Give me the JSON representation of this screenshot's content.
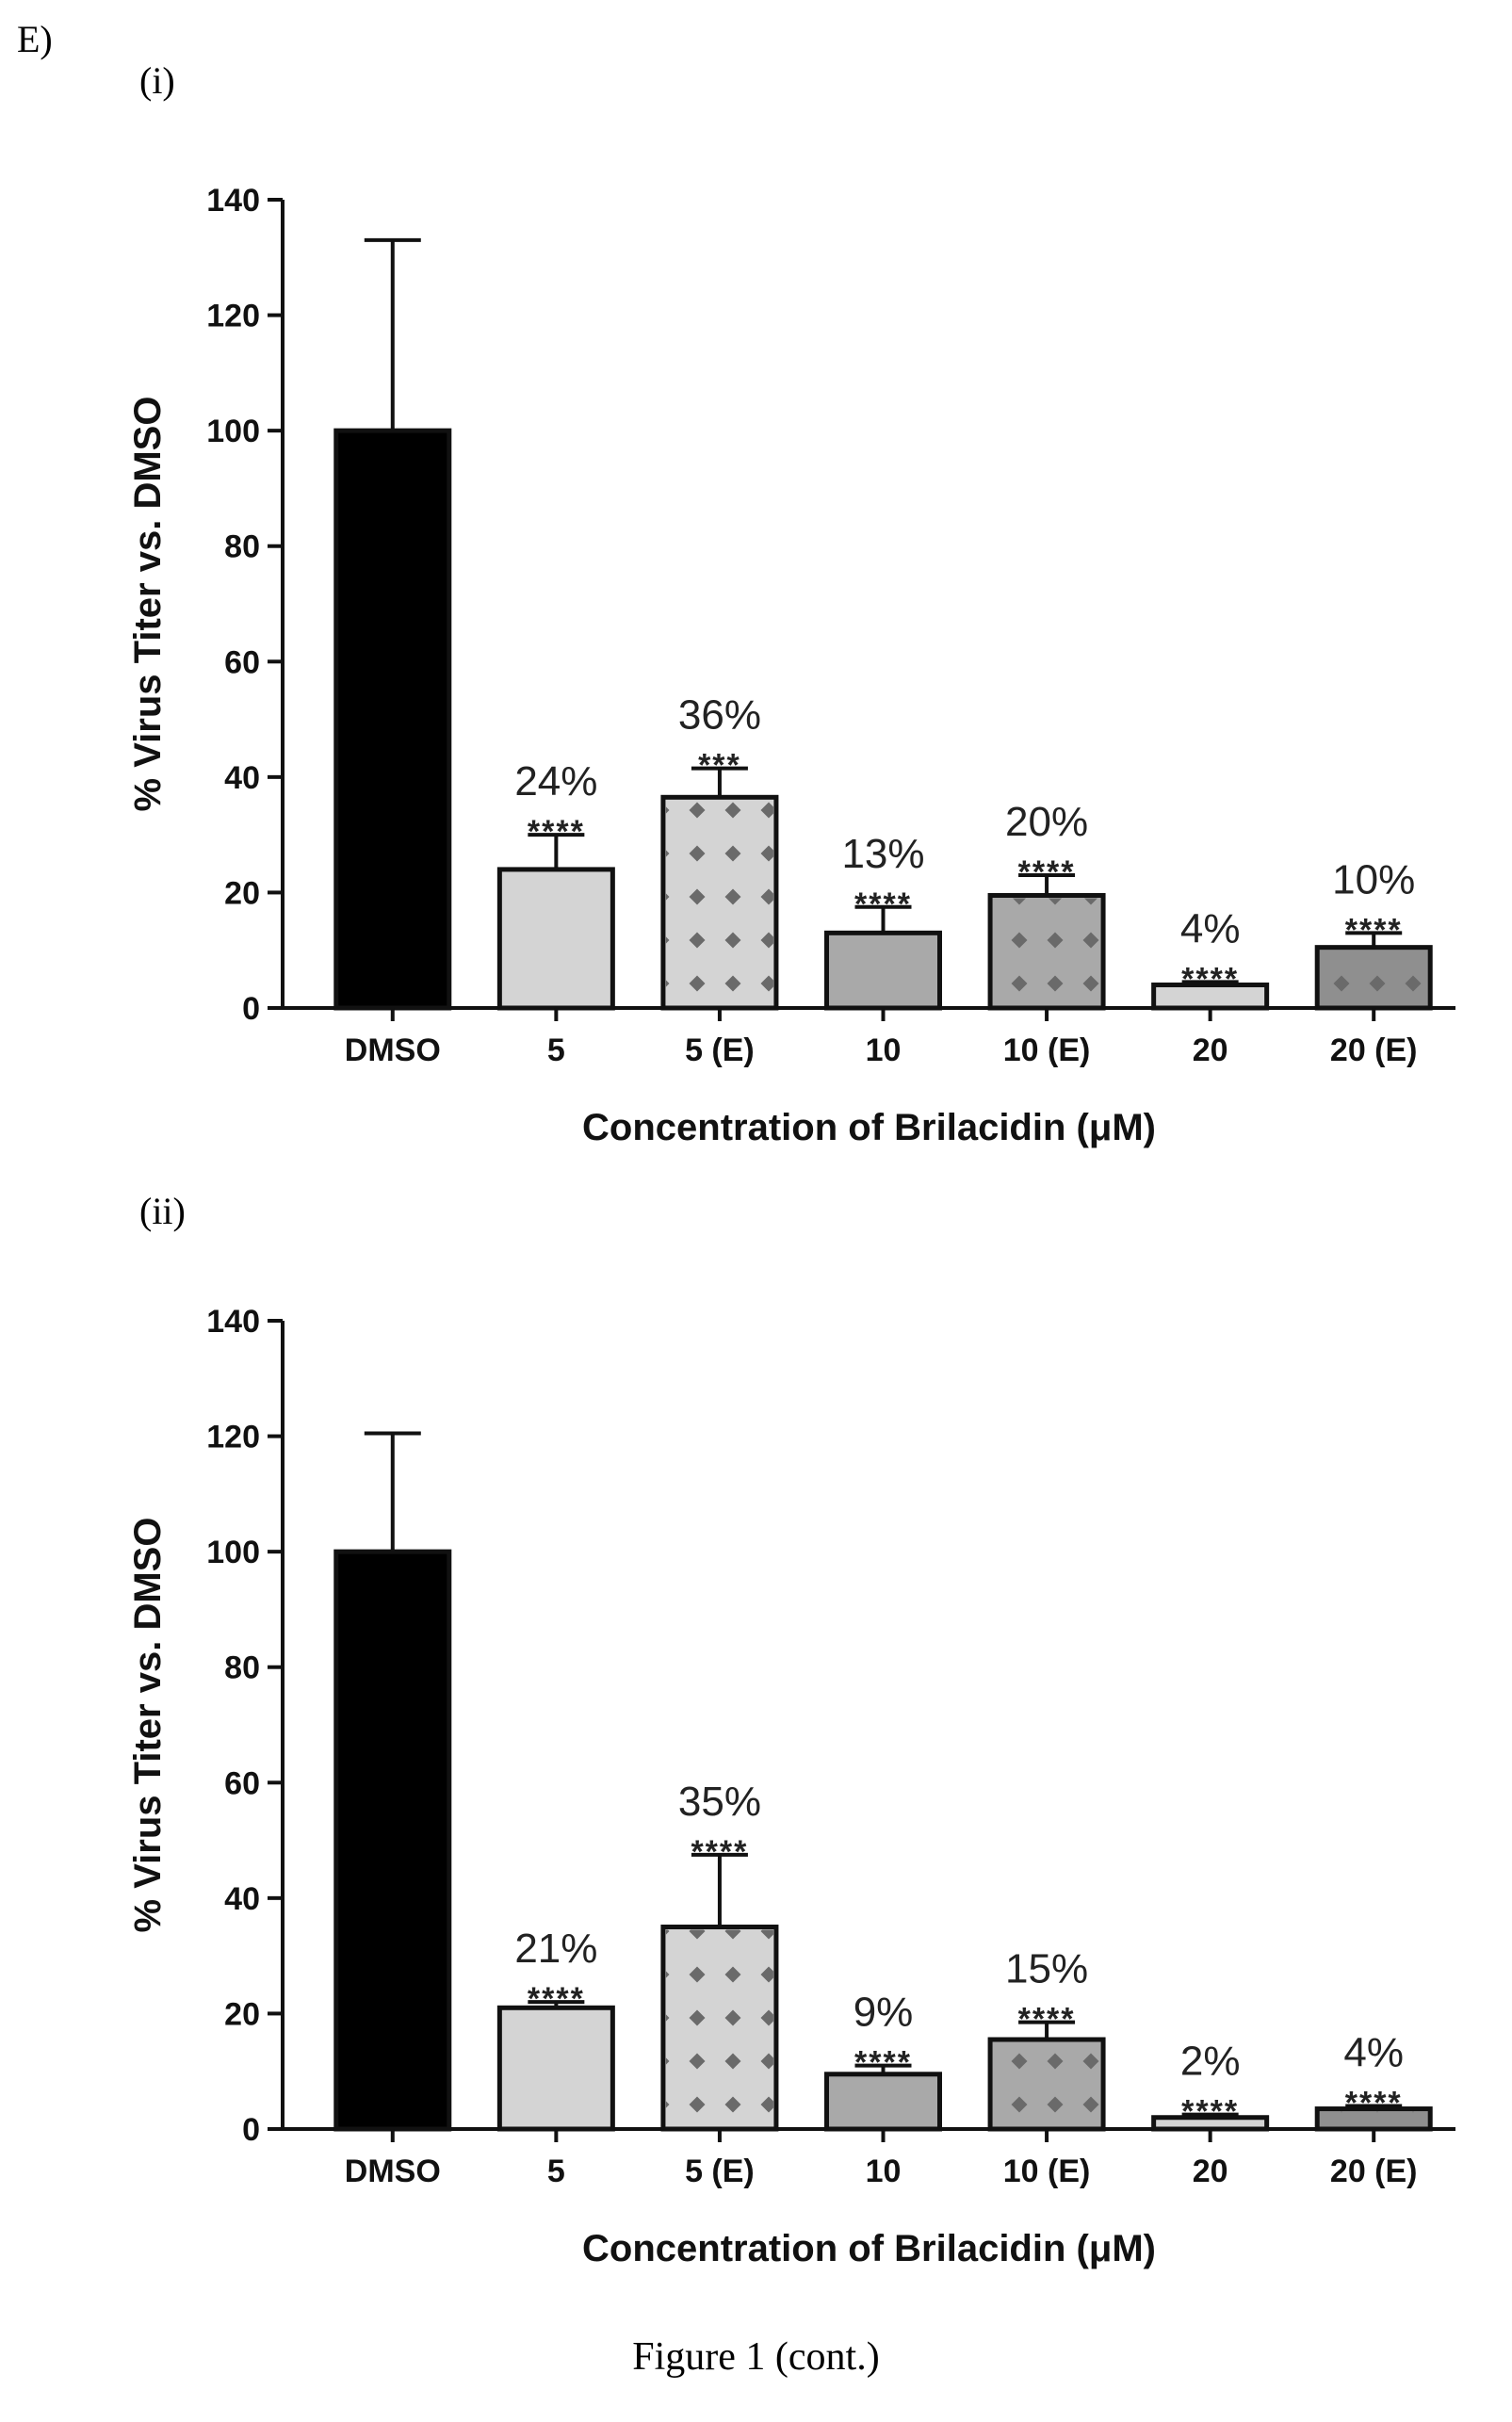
{
  "panel_label": "E)",
  "figure_caption": "Figure 1 (cont.)",
  "colors": {
    "dmso_bar": "#000000",
    "light_bar": "#d4d4d4",
    "mid_bar": "#a9a9a9",
    "dark_bar": "#8f8f8f",
    "pattern_dot": "#6a6a6a"
  },
  "chart_data": [
    {
      "subpanel": "(i)",
      "type": "bar",
      "xlabel": "Concentration of Brilacidin (μM)",
      "ylabel": "% Virus Titer vs. DMSO",
      "ylim": [
        0,
        140
      ],
      "yticks": [
        "0",
        "20",
        "40",
        "60",
        "80",
        "100",
        "120",
        "140"
      ],
      "categories": [
        "DMSO",
        "5",
        "5 (E)",
        "10",
        "10 (E)",
        "20",
        "20 (E)"
      ],
      "values": [
        100,
        24,
        36.5,
        13,
        19.5,
        4,
        10.5
      ],
      "errors": [
        33,
        6,
        5,
        4.5,
        3.5,
        0.5,
        2.5
      ],
      "percent_labels": [
        "",
        "24%",
        "36%",
        "13%",
        "20%",
        "4%",
        "10%"
      ],
      "significance": [
        "",
        "****",
        "***",
        "****",
        "****",
        "****",
        "****"
      ],
      "fills": [
        "dmso_bar",
        "light_bar",
        "light_bar",
        "mid_bar",
        "mid_bar",
        "light_bar",
        "dark_bar"
      ],
      "patterned": [
        false,
        false,
        true,
        false,
        true,
        false,
        true
      ]
    },
    {
      "subpanel": "(ii)",
      "type": "bar",
      "xlabel": "Concentration of Brilacidin (μM)",
      "ylabel": "% Virus Titer vs. DMSO",
      "ylim": [
        0,
        140
      ],
      "yticks": [
        "0",
        "20",
        "40",
        "60",
        "80",
        "100",
        "120",
        "140"
      ],
      "categories": [
        "DMSO",
        "5",
        "5 (E)",
        "10",
        "10 (E)",
        "20",
        "20 (E)"
      ],
      "values": [
        100,
        21,
        35,
        9.5,
        15.5,
        2,
        3.5
      ],
      "errors": [
        20.5,
        1,
        12.5,
        1.5,
        3,
        0.5,
        0.5
      ],
      "percent_labels": [
        "",
        "21%",
        "35%",
        "9%",
        "15%",
        "2%",
        "4%"
      ],
      "significance": [
        "",
        "****",
        "****",
        "****",
        "****",
        "****",
        "****"
      ],
      "fills": [
        "dmso_bar",
        "light_bar",
        "light_bar",
        "mid_bar",
        "mid_bar",
        "light_bar",
        "dark_bar"
      ],
      "patterned": [
        false,
        false,
        true,
        false,
        true,
        false,
        true
      ]
    }
  ]
}
